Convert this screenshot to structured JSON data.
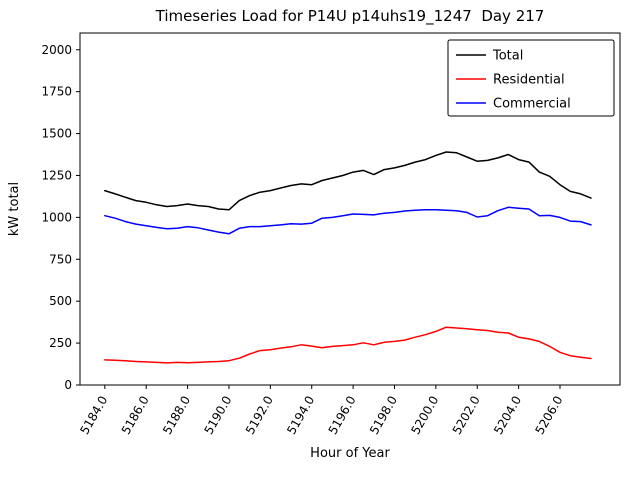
{
  "figure": {
    "title": "Timeseries Load for P14U p14uhs19_1247  Day 217",
    "xlabel": "Hour of Year",
    "ylabel": "kW total"
  },
  "chart_data": {
    "type": "line",
    "title": "Timeseries Load for P14U p14uhs19_1247  Day 217",
    "xlabel": "Hour of Year",
    "ylabel": "kW total",
    "xlim": [
      5182.8,
      5208.9
    ],
    "ylim": [
      0,
      2100
    ],
    "grid": false,
    "legend_position": "upper right",
    "x_ticks": [
      {
        "value": 5184,
        "label": "5184.0"
      },
      {
        "value": 5186,
        "label": "5186.0"
      },
      {
        "value": 5188,
        "label": "5188.0"
      },
      {
        "value": 5190,
        "label": "5190.0"
      },
      {
        "value": 5192,
        "label": "5192.0"
      },
      {
        "value": 5194,
        "label": "5194.0"
      },
      {
        "value": 5196,
        "label": "5196.0"
      },
      {
        "value": 5198,
        "label": "5198.0"
      },
      {
        "value": 5200,
        "label": "5200.0"
      },
      {
        "value": 5202,
        "label": "5202.0"
      },
      {
        "value": 5204,
        "label": "5204.0"
      },
      {
        "value": 5206,
        "label": "5206.0"
      }
    ],
    "y_ticks": [
      {
        "value": 0,
        "label": "0"
      },
      {
        "value": 250,
        "label": "250"
      },
      {
        "value": 500,
        "label": "500"
      },
      {
        "value": 750,
        "label": "750"
      },
      {
        "value": 1000,
        "label": "1000"
      },
      {
        "value": 1250,
        "label": "1250"
      },
      {
        "value": 1500,
        "label": "1500"
      },
      {
        "value": 1750,
        "label": "1750"
      },
      {
        "value": 2000,
        "label": "2000"
      }
    ],
    "x": [
      5184.0,
      5184.5,
      5185.0,
      5185.5,
      5186.0,
      5186.5,
      5187.0,
      5187.5,
      5188.0,
      5188.5,
      5189.0,
      5189.5,
      5190.0,
      5190.5,
      5191.0,
      5191.5,
      5192.0,
      5192.5,
      5193.0,
      5193.5,
      5194.0,
      5194.5,
      5195.0,
      5195.5,
      5196.0,
      5196.5,
      5197.0,
      5197.5,
      5198.0,
      5198.5,
      5199.0,
      5199.5,
      5200.0,
      5200.5,
      5201.0,
      5201.5,
      5202.0,
      5202.5,
      5203.0,
      5203.5,
      5204.0,
      5204.5,
      5205.0,
      5205.5,
      5206.0,
      5206.5,
      5207.0,
      5207.5
    ],
    "series": [
      {
        "name": "Total",
        "color": "#000000",
        "values": [
          1160,
          1140,
          1120,
          1100,
          1090,
          1075,
          1065,
          1070,
          1080,
          1070,
          1065,
          1050,
          1045,
          1100,
          1130,
          1150,
          1160,
          1175,
          1190,
          1200,
          1195,
          1220,
          1235,
          1250,
          1270,
          1280,
          1255,
          1285,
          1295,
          1310,
          1330,
          1345,
          1370,
          1390,
          1385,
          1360,
          1335,
          1340,
          1355,
          1375,
          1345,
          1330,
          1270,
          1245,
          1195,
          1155,
          1140,
          1115
        ]
      },
      {
        "name": "Residential",
        "color": "#ff0000",
        "values": [
          150,
          148,
          145,
          140,
          138,
          135,
          132,
          135,
          133,
          135,
          138,
          140,
          145,
          160,
          185,
          205,
          210,
          220,
          228,
          240,
          232,
          222,
          230,
          235,
          240,
          252,
          240,
          255,
          260,
          268,
          285,
          300,
          320,
          345,
          340,
          335,
          330,
          325,
          315,
          310,
          285,
          275,
          260,
          230,
          195,
          175,
          165,
          158
        ]
      },
      {
        "name": "Commercial",
        "color": "#0000ff",
        "values": [
          1010,
          995,
          975,
          960,
          950,
          940,
          932,
          935,
          945,
          938,
          925,
          912,
          902,
          935,
          945,
          945,
          950,
          955,
          962,
          960,
          965,
          995,
          1000,
          1010,
          1020,
          1018,
          1015,
          1025,
          1030,
          1038,
          1042,
          1045,
          1045,
          1043,
          1040,
          1030,
          1002,
          1010,
          1040,
          1060,
          1055,
          1050,
          1010,
          1012,
          1000,
          978,
          975,
          955
        ]
      }
    ]
  }
}
